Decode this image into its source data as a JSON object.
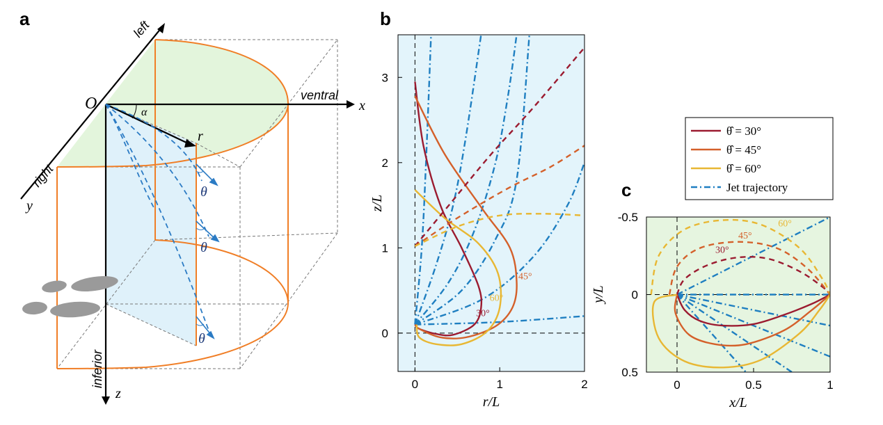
{
  "panels": {
    "a": {
      "letter": "a",
      "labels": {
        "left": "left",
        "ventral": "ventral",
        "right": "right",
        "inferior": "inferior",
        "origin": "O",
        "x": "x",
        "y": "y",
        "z": "z",
        "r": "r",
        "alpha": "α",
        "theta": "θ"
      },
      "colors": {
        "cylinder": "#f07e26",
        "top_fill": "#e3f5dc",
        "side_fill": "#dff1fa",
        "ray": "#2b7bc4",
        "shadow": "#9a9a9a"
      }
    },
    "b": {
      "letter": "b",
      "chart_data": {
        "type": "line",
        "xlabel": "r/L",
        "ylabel": "z/L",
        "xlim": [
          -0.2,
          2.0
        ],
        "ylim": [
          3.5,
          -0.45
        ],
        "xticks": [
          "0",
          "1",
          "2"
        ],
        "yticks": [
          "0",
          "1",
          "2",
          "3"
        ],
        "background": "#e3f4fb",
        "series": [
          {
            "name": "θ̂ = 30°",
            "color": "#9b1b30",
            "style": "solid",
            "points": [
              [
                0.0,
                2.95
              ],
              [
                0.1,
                2.2
              ],
              [
                0.3,
                1.5
              ],
              [
                0.55,
                1.0
              ],
              [
                0.75,
                0.55
              ],
              [
                0.78,
                0.3
              ],
              [
                0.7,
                0.1
              ],
              [
                0.45,
                -0.02
              ],
              [
                0.25,
                -0.01
              ],
              [
                0.05,
                0.05
              ],
              [
                0.0,
                0.1
              ]
            ]
          },
          {
            "name": "θ̂ = 45°",
            "color": "#d4602a",
            "style": "solid",
            "points": [
              [
                0.0,
                2.78
              ],
              [
                0.35,
                2.1
              ],
              [
                0.8,
                1.45
              ],
              [
                1.12,
                1.0
              ],
              [
                1.2,
                0.6
              ],
              [
                1.15,
                0.3
              ],
              [
                0.95,
                0.08
              ],
              [
                0.6,
                -0.05
              ],
              [
                0.3,
                -0.05
              ],
              [
                0.05,
                0.05
              ],
              [
                0.0,
                0.1
              ]
            ]
          },
          {
            "name": "θ̂ = 60°",
            "color": "#e8b733",
            "style": "solid",
            "points": [
              [
                0.0,
                1.68
              ],
              [
                0.35,
                1.35
              ],
              [
                0.75,
                1.05
              ],
              [
                0.98,
                0.7
              ],
              [
                1.0,
                0.3
              ],
              [
                0.85,
                0.02
              ],
              [
                0.55,
                -0.13
              ],
              [
                0.25,
                -0.13
              ],
              [
                0.05,
                -0.05
              ],
              [
                0.02,
                0.1
              ]
            ]
          },
          {
            "name": "",
            "color": "#9b1b30",
            "style": "dashed",
            "points": [
              [
                0.0,
                1.02
              ],
              [
                0.4,
                1.5
              ],
              [
                0.9,
                2.1
              ],
              [
                1.4,
                2.65
              ],
              [
                2.0,
                3.35
              ]
            ]
          },
          {
            "name": "",
            "color": "#d4602a",
            "style": "dashed",
            "points": [
              [
                0.0,
                1.02
              ],
              [
                0.5,
                1.35
              ],
              [
                1.1,
                1.7
              ],
              [
                1.6,
                1.95
              ],
              [
                2.0,
                2.2
              ]
            ]
          },
          {
            "name": "",
            "color": "#e8b733",
            "style": "dashed",
            "points": [
              [
                0.0,
                1.02
              ],
              [
                0.5,
                1.25
              ],
              [
                1.0,
                1.38
              ],
              [
                1.5,
                1.4
              ],
              [
                2.0,
                1.38
              ]
            ]
          }
        ],
        "jet_trajectories": {
          "name": "Jet trajectory",
          "color": "#1f7fc1",
          "lines": [
            [
              [
                0.0,
                0.1
              ],
              [
                0.08,
                1.0
              ],
              [
                0.13,
                2.0
              ],
              [
                0.19,
                3.5
              ]
            ],
            [
              [
                0.0,
                0.1
              ],
              [
                0.25,
                0.8
              ],
              [
                0.45,
                1.5
              ],
              [
                0.6,
                2.3
              ],
              [
                0.78,
                3.5
              ]
            ],
            [
              [
                0.0,
                0.1
              ],
              [
                0.4,
                0.6
              ],
              [
                0.7,
                1.2
              ],
              [
                0.95,
                2.0
              ],
              [
                1.1,
                2.8
              ],
              [
                1.2,
                3.5
              ]
            ],
            [
              [
                0.0,
                0.1
              ],
              [
                0.55,
                0.5
              ],
              [
                0.95,
                1.1
              ],
              [
                1.2,
                1.8
              ],
              [
                1.35,
                3.5
              ]
            ],
            [
              [
                0.0,
                0.1
              ],
              [
                0.8,
                0.4
              ],
              [
                1.4,
                0.9
              ],
              [
                1.8,
                1.5
              ],
              [
                2.0,
                2.0
              ]
            ],
            [
              [
                0.0,
                0.1
              ],
              [
                1.0,
                0.13
              ],
              [
                2.0,
                0.2
              ]
            ]
          ]
        },
        "annotations": [
          {
            "text": "30°",
            "color": "#9b1b30",
            "x": 0.72,
            "y": 0.2
          },
          {
            "text": "60°",
            "color": "#e8b733",
            "x": 0.88,
            "y": 0.38
          },
          {
            "text": "45°",
            "color": "#d4602a",
            "x": 1.22,
            "y": 0.63
          }
        ]
      }
    },
    "c": {
      "letter": "c",
      "chart_data": {
        "type": "line",
        "xlabel": "x/L",
        "ylabel": "y/L",
        "xlim": [
          -0.2,
          1.0
        ],
        "ylim": [
          -0.5,
          0.5
        ],
        "xticks": [
          "0",
          "0.5",
          "1"
        ],
        "yticks": [
          "-0.5",
          "0",
          "0.5"
        ],
        "background": "#e6f5e0",
        "series": [
          {
            "name": "θ̂ = 30°",
            "color": "#9b1b30",
            "style": "solid",
            "points": [
              [
                0.0,
                0.0
              ],
              [
                0.05,
                0.1
              ],
              [
                0.15,
                0.17
              ],
              [
                0.3,
                0.2
              ],
              [
                0.5,
                0.19
              ],
              [
                0.7,
                0.13
              ],
              [
                0.88,
                0.06
              ],
              [
                1.0,
                0.0
              ]
            ]
          },
          {
            "name": "θ̂ = 45°",
            "color": "#d4602a",
            "style": "solid",
            "points": [
              [
                0.0,
                0.0
              ],
              [
                -0.01,
                0.12
              ],
              [
                0.08,
                0.26
              ],
              [
                0.25,
                0.32
              ],
              [
                0.45,
                0.32
              ],
              [
                0.7,
                0.23
              ],
              [
                0.88,
                0.1
              ],
              [
                1.0,
                0.0
              ]
            ]
          },
          {
            "name": "θ̂ = 60°",
            "color": "#e8b733",
            "style": "solid",
            "points": [
              [
                0.0,
                0.0
              ],
              [
                -0.15,
                0.05
              ],
              [
                -0.12,
                0.28
              ],
              [
                0.05,
                0.43
              ],
              [
                0.3,
                0.47
              ],
              [
                0.55,
                0.42
              ],
              [
                0.8,
                0.25
              ],
              [
                0.93,
                0.1
              ],
              [
                1.0,
                0.0
              ]
            ]
          },
          {
            "name": "",
            "color": "#9b1b30",
            "style": "dashed",
            "points": [
              [
                0.0,
                0.0
              ],
              [
                0.05,
                -0.1
              ],
              [
                0.2,
                -0.19
              ],
              [
                0.4,
                -0.24
              ],
              [
                0.6,
                -0.23
              ],
              [
                0.8,
                -0.15
              ],
              [
                0.95,
                -0.05
              ],
              [
                1.0,
                0.0
              ]
            ]
          },
          {
            "name": "",
            "color": "#d4602a",
            "style": "dashed",
            "points": [
              [
                -0.05,
                0.0
              ],
              [
                0.0,
                -0.18
              ],
              [
                0.15,
                -0.3
              ],
              [
                0.4,
                -0.34
              ],
              [
                0.65,
                -0.3
              ],
              [
                0.85,
                -0.17
              ],
              [
                1.0,
                0.0
              ]
            ]
          },
          {
            "name": "",
            "color": "#e8b733",
            "style": "dashed",
            "points": [
              [
                -0.17,
                0.0
              ],
              [
                -0.12,
                -0.25
              ],
              [
                0.05,
                -0.42
              ],
              [
                0.3,
                -0.48
              ],
              [
                0.55,
                -0.45
              ],
              [
                0.8,
                -0.3
              ],
              [
                0.95,
                -0.1
              ],
              [
                1.0,
                0.0
              ]
            ]
          }
        ],
        "jet_trajectories": {
          "name": "Jet trajectory",
          "color": "#1f7fc1",
          "lines": [
            [
              [
                0.0,
                0.0
              ],
              [
                1.0,
                -0.5
              ]
            ],
            [
              [
                0.0,
                0.0
              ],
              [
                1.0,
                0.0
              ]
            ],
            [
              [
                0.0,
                0.0
              ],
              [
                1.0,
                0.2
              ]
            ],
            [
              [
                0.0,
                0.0
              ],
              [
                1.0,
                0.4
              ]
            ],
            [
              [
                0.0,
                0.0
              ],
              [
                0.75,
                0.5
              ]
            ],
            [
              [
                0.0,
                0.0
              ],
              [
                0.45,
                0.5
              ]
            ]
          ]
        },
        "annotations": [
          {
            "text": "30°",
            "color": "#9b1b30",
            "x": 0.25,
            "y": -0.27
          },
          {
            "text": "45°",
            "color": "#d4602a",
            "x": 0.4,
            "y": -0.36
          },
          {
            "text": "60°",
            "color": "#e8b733",
            "x": 0.66,
            "y": -0.44
          }
        ]
      }
    }
  },
  "legend": {
    "entries": [
      {
        "label": "θ̂ = 30°",
        "color": "#9b1b30",
        "style": "solid"
      },
      {
        "label": "θ̂ = 45°",
        "color": "#d4602a",
        "style": "solid"
      },
      {
        "label": "θ̂ = 60°",
        "color": "#e8b733",
        "style": "solid"
      },
      {
        "label": "Jet trajectory",
        "color": "#1f7fc1",
        "style": "dashdot"
      }
    ]
  }
}
